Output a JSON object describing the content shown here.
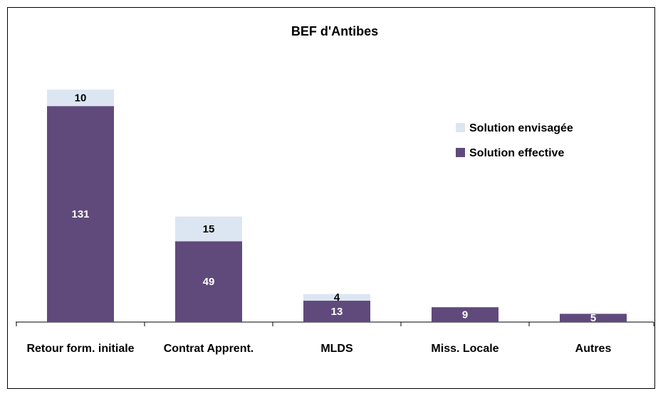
{
  "chart_data": {
    "type": "bar",
    "stacked": true,
    "title": "BEF d'Antibes",
    "categories": [
      "Retour form. initiale",
      "Contrat Apprent.",
      "MLDS",
      "Miss. Locale",
      "Autres"
    ],
    "series": [
      {
        "name": "Solution effective",
        "color": "#604a7b",
        "label_color": "#ffffff",
        "values": [
          131,
          49,
          13,
          9,
          5
        ]
      },
      {
        "name": "Solution envisagée",
        "color": "#dce6f2",
        "label_color": "#000000",
        "values": [
          10,
          15,
          4,
          null,
          null
        ]
      }
    ],
    "legend": "upper right"
  }
}
